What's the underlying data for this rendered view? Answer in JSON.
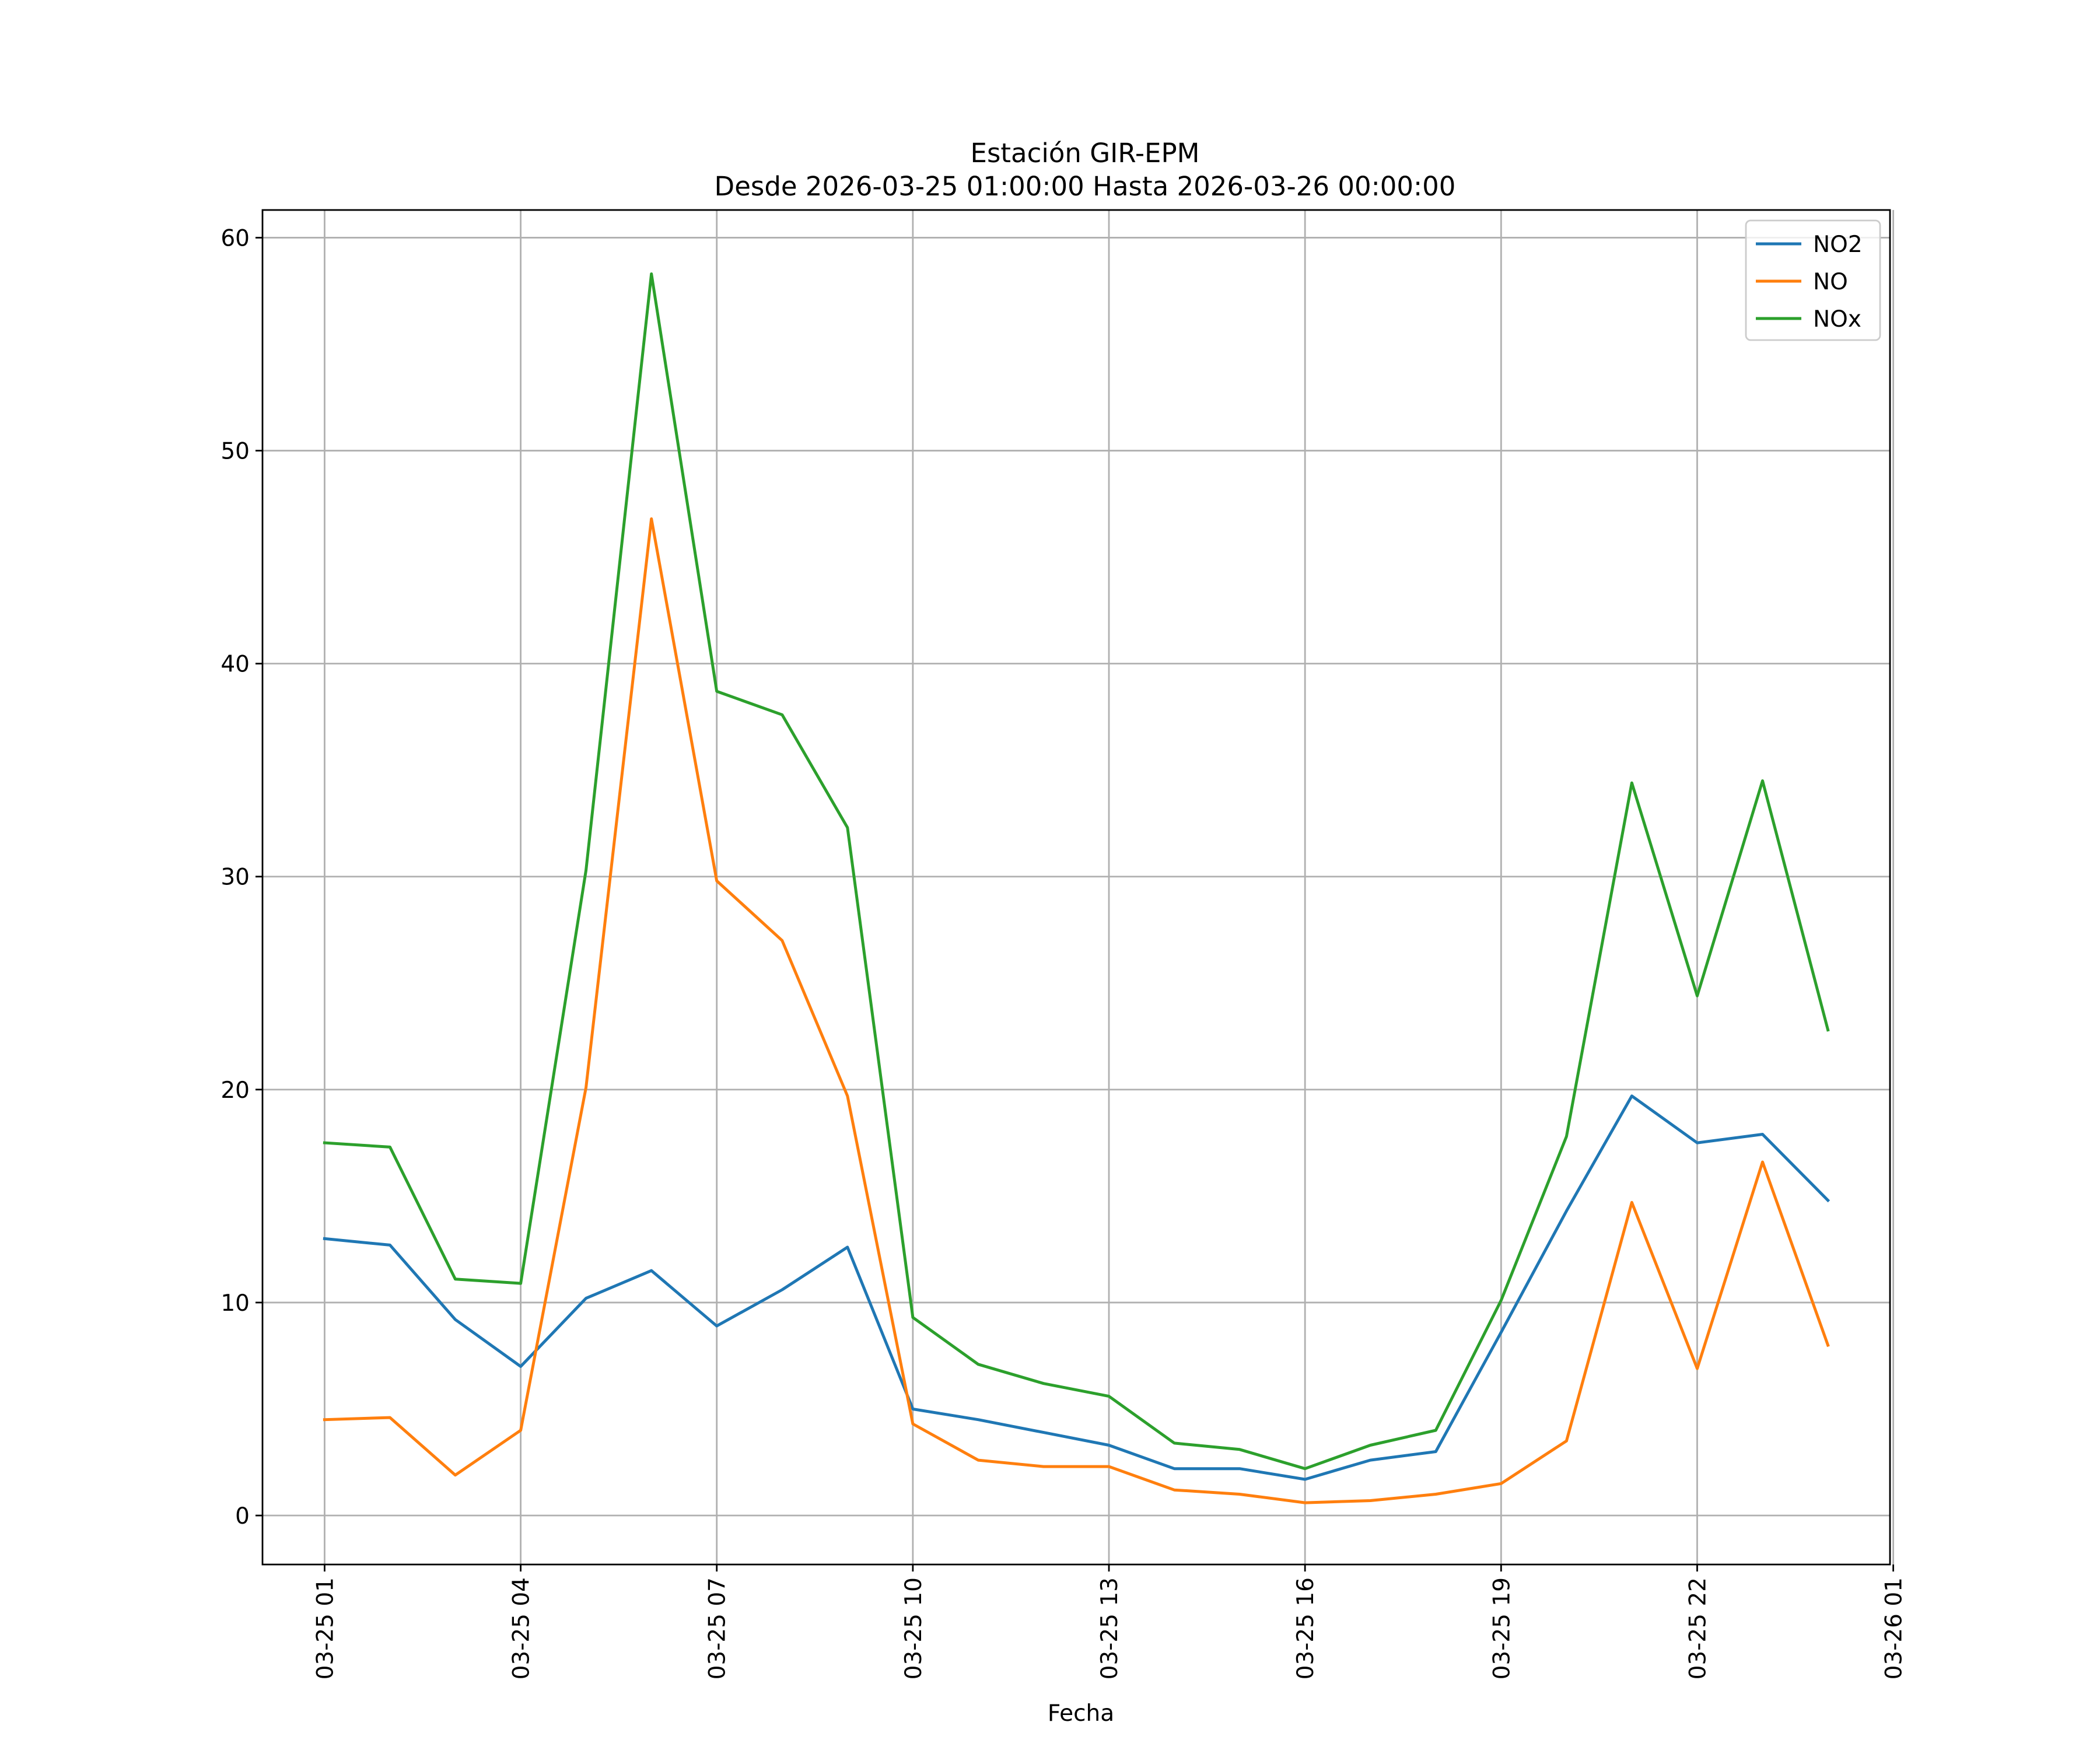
{
  "chart_data": {
    "type": "line",
    "title": "Estación GIR-EPM",
    "subtitle": "Desde 2026-03-25 01:00:00 Hasta 2026-03-26 00:00:00",
    "xlabel": "Fecha",
    "ylabel": "",
    "x": [
      "2026-03-25 01:00",
      "2026-03-25 02:00",
      "2026-03-25 03:00",
      "2026-03-25 04:00",
      "2026-03-25 05:00",
      "2026-03-25 06:00",
      "2026-03-25 07:00",
      "2026-03-25 08:00",
      "2026-03-25 09:00",
      "2026-03-25 10:00",
      "2026-03-25 11:00",
      "2026-03-25 12:00",
      "2026-03-25 13:00",
      "2026-03-25 14:00",
      "2026-03-25 15:00",
      "2026-03-25 16:00",
      "2026-03-25 17:00",
      "2026-03-25 18:00",
      "2026-03-25 19:00",
      "2026-03-25 20:00",
      "2026-03-25 21:00",
      "2026-03-25 22:00",
      "2026-03-25 23:00",
      "2026-03-26 00:00"
    ],
    "xlim": [
      "2026-03-25 00:03",
      "2026-03-26 00:57"
    ],
    "ylim": [
      -2.3,
      61.3
    ],
    "xticks": [
      {
        "value": "2026-03-25 01:00",
        "label": "03-25 01"
      },
      {
        "value": "2026-03-25 04:00",
        "label": "03-25 04"
      },
      {
        "value": "2026-03-25 07:00",
        "label": "03-25 07"
      },
      {
        "value": "2026-03-25 10:00",
        "label": "03-25 10"
      },
      {
        "value": "2026-03-25 13:00",
        "label": "03-25 13"
      },
      {
        "value": "2026-03-25 16:00",
        "label": "03-25 16"
      },
      {
        "value": "2026-03-25 19:00",
        "label": "03-25 19"
      },
      {
        "value": "2026-03-25 22:00",
        "label": "03-25 22"
      },
      {
        "value": "2026-03-26 01:00",
        "label": "03-26 01"
      }
    ],
    "yticks": [
      0,
      10,
      20,
      30,
      40,
      50,
      60
    ],
    "grid": true,
    "legend_position": "top-right",
    "series": [
      {
        "name": "NO2",
        "color": "#1f77b4",
        "values": [
          13.0,
          12.7,
          9.2,
          7.0,
          10.2,
          11.5,
          8.9,
          10.6,
          12.6,
          5.0,
          4.5,
          3.9,
          3.3,
          2.2,
          2.2,
          1.7,
          2.6,
          3.0,
          8.6,
          14.3,
          19.7,
          17.5,
          17.9,
          14.8
        ]
      },
      {
        "name": "NO",
        "color": "#ff7f0e",
        "values": [
          4.5,
          4.6,
          1.9,
          4.0,
          20.1,
          46.8,
          29.8,
          27.0,
          19.7,
          4.3,
          2.6,
          2.3,
          2.3,
          1.2,
          1.0,
          0.6,
          0.7,
          1.0,
          1.5,
          3.5,
          14.7,
          6.9,
          16.6,
          8.0
        ]
      },
      {
        "name": "NOx",
        "color": "#2ca02c",
        "values": [
          17.5,
          17.3,
          11.1,
          10.9,
          30.3,
          58.3,
          38.7,
          37.6,
          32.3,
          9.3,
          7.1,
          6.2,
          5.6,
          3.4,
          3.1,
          2.2,
          3.3,
          4.0,
          10.1,
          17.8,
          34.4,
          24.4,
          34.5,
          22.8
        ]
      }
    ]
  }
}
